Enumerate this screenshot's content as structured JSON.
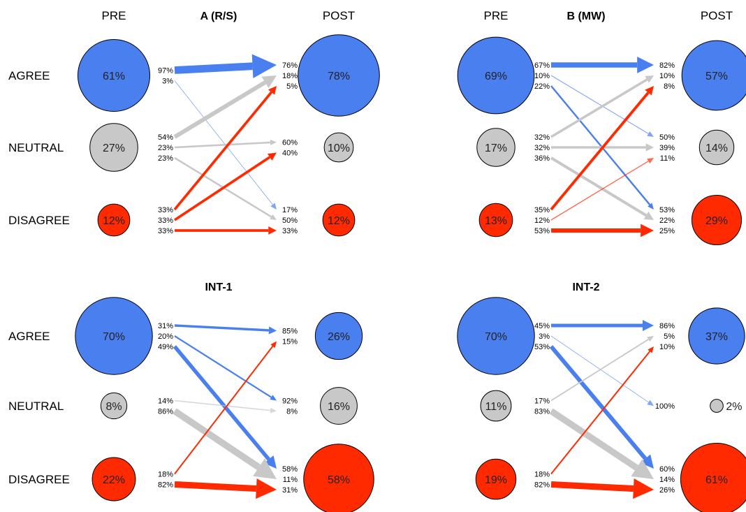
{
  "row_labels": [
    "AGREE",
    "NEUTRAL",
    "DISAGREE"
  ],
  "colors": {
    "agree": "#4A7FF0",
    "neutral": "#C8C8C8",
    "disagree": "#FF2A00",
    "stroke": "#000000"
  },
  "panels": [
    {
      "title": "A (R/S)",
      "pre_label": "PRE",
      "post_label": "POST",
      "pre_circles": [
        {
          "value": 61,
          "label": "61%"
        },
        {
          "value": 27,
          "label": "27%"
        },
        {
          "value": 12,
          "label": "12%"
        }
      ],
      "post_circles": [
        {
          "value": 78,
          "label": "78%"
        },
        {
          "value": 10,
          "label": "10%"
        },
        {
          "value": 12,
          "label": "12%"
        }
      ],
      "flows": [
        {
          "from": 0,
          "to": 0,
          "left": "97%",
          "right": "76%",
          "weight": 97
        },
        {
          "from": 0,
          "to": 2,
          "left": "3%",
          "right": "17%",
          "weight": 3
        },
        {
          "from": 1,
          "to": 0,
          "left": "54%",
          "right": "18%",
          "weight": 54
        },
        {
          "from": 1,
          "to": 1,
          "left": "23%",
          "right": "60%",
          "weight": 23
        },
        {
          "from": 1,
          "to": 2,
          "left": "23%",
          "right": "50%",
          "weight": 23
        },
        {
          "from": 2,
          "to": 0,
          "left": "33%",
          "right": "5%",
          "weight": 33
        },
        {
          "from": 2,
          "to": 1,
          "left": "33%",
          "right": "40%",
          "weight": 33
        },
        {
          "from": 2,
          "to": 2,
          "left": "33%",
          "right": "33%",
          "weight": 33
        }
      ]
    },
    {
      "title": "B (MW)",
      "pre_label": "PRE",
      "post_label": "POST",
      "pre_circles": [
        {
          "value": 69,
          "label": "69%"
        },
        {
          "value": 17,
          "label": "17%"
        },
        {
          "value": 13,
          "label": "13%"
        }
      ],
      "post_circles": [
        {
          "value": 57,
          "label": "57%"
        },
        {
          "value": 14,
          "label": "14%"
        },
        {
          "value": 29,
          "label": "29%"
        }
      ],
      "flows": [
        {
          "from": 0,
          "to": 0,
          "left": "67%",
          "right": "82%",
          "weight": 67
        },
        {
          "from": 0,
          "to": 1,
          "left": "10%",
          "right": "50%",
          "weight": 10
        },
        {
          "from": 0,
          "to": 2,
          "left": "22%",
          "right": "53%",
          "weight": 22
        },
        {
          "from": 1,
          "to": 0,
          "left": "32%",
          "right": "10%",
          "weight": 32
        },
        {
          "from": 1,
          "to": 1,
          "left": "32%",
          "right": "39%",
          "weight": 32
        },
        {
          "from": 1,
          "to": 2,
          "left": "36%",
          "right": "22%",
          "weight": 36
        },
        {
          "from": 2,
          "to": 0,
          "left": "35%",
          "right": "8%",
          "weight": 35
        },
        {
          "from": 2,
          "to": 1,
          "left": "12%",
          "right": "11%",
          "weight": 12
        },
        {
          "from": 2,
          "to": 2,
          "left": "53%",
          "right": "25%",
          "weight": 53
        }
      ]
    },
    {
      "title": "INT-1",
      "pre_label": "",
      "post_label": "",
      "pre_circles": [
        {
          "value": 70,
          "label": "70%"
        },
        {
          "value": 8,
          "label": "8%"
        },
        {
          "value": 22,
          "label": "22%"
        }
      ],
      "post_circles": [
        {
          "value": 26,
          "label": "26%"
        },
        {
          "value": 16,
          "label": "16%"
        },
        {
          "value": 58,
          "label": "58%"
        }
      ],
      "flows": [
        {
          "from": 0,
          "to": 0,
          "left": "31%",
          "right": "85%",
          "weight": 31
        },
        {
          "from": 0,
          "to": 1,
          "left": "20%",
          "right": "92%",
          "weight": 20
        },
        {
          "from": 0,
          "to": 2,
          "left": "49%",
          "right": "58%",
          "weight": 49
        },
        {
          "from": 1,
          "to": 1,
          "left": "14%",
          "right": "8%",
          "weight": 14
        },
        {
          "from": 1,
          "to": 2,
          "left": "86%",
          "right": "11%",
          "weight": 86
        },
        {
          "from": 2,
          "to": 0,
          "left": "18%",
          "right": "15%",
          "weight": 18
        },
        {
          "from": 2,
          "to": 2,
          "left": "82%",
          "right": "31%",
          "weight": 82
        }
      ]
    },
    {
      "title": "INT-2",
      "pre_label": "",
      "post_label": "",
      "pre_circles": [
        {
          "value": 70,
          "label": "70%"
        },
        {
          "value": 11,
          "label": "11%"
        },
        {
          "value": 19,
          "label": "19%"
        }
      ],
      "post_circles": [
        {
          "value": 37,
          "label": "37%"
        },
        {
          "value": 2,
          "label": "2%"
        },
        {
          "value": 61,
          "label": "61%"
        }
      ],
      "flows": [
        {
          "from": 0,
          "to": 0,
          "left": "45%",
          "right": "86%",
          "weight": 45
        },
        {
          "from": 0,
          "to": 1,
          "left": "3%",
          "right": "100%",
          "weight": 3
        },
        {
          "from": 0,
          "to": 2,
          "left": "53%",
          "right": "60%",
          "weight": 53
        },
        {
          "from": 1,
          "to": 0,
          "left": "17%",
          "right": "5%",
          "weight": 17
        },
        {
          "from": 1,
          "to": 2,
          "left": "83%",
          "right": "14%",
          "weight": 83
        },
        {
          "from": 2,
          "to": 0,
          "left": "18%",
          "right": "10%",
          "weight": 18
        },
        {
          "from": 2,
          "to": 2,
          "left": "82%",
          "right": "26%",
          "weight": 82
        }
      ]
    }
  ]
}
